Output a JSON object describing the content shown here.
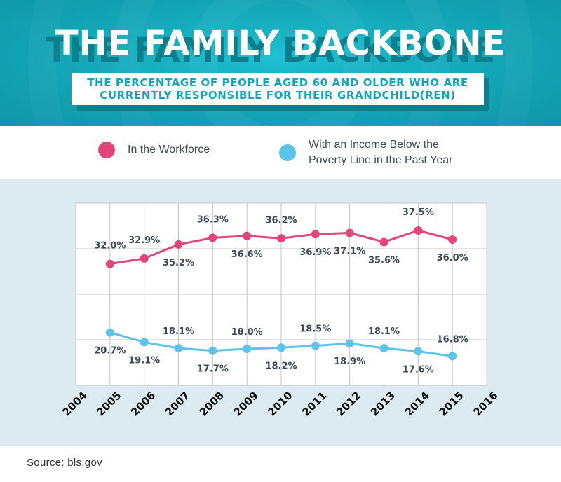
{
  "header": {
    "title": "THE FAMILY BACKBONE",
    "subtitle": "THE PERCENTAGE OF PEOPLE AGED 60 AND OLDER WHO ARE\nCURRENTLY RESPONSIBLE FOR THEIR GRANDCHILD(REN)"
  },
  "legend": [
    {
      "label": "In the Workforce",
      "color": "#e0467a"
    },
    {
      "label": "With an Income Below the\nPoverty Line in the Past Year",
      "color": "#5ec3ea"
    }
  ],
  "chart_data": {
    "type": "line",
    "x_ticks": [
      "2004",
      "2005",
      "2006",
      "2007",
      "2008",
      "2009",
      "2010",
      "2011",
      "2012",
      "2013",
      "2014",
      "2015",
      "2016"
    ],
    "x": [
      2005,
      2006,
      2007,
      2008,
      2009,
      2010,
      2011,
      2012,
      2013,
      2014,
      2015
    ],
    "xlim": [
      2004,
      2016
    ],
    "ylim": [
      12,
      42
    ],
    "grid": true,
    "series": [
      {
        "name": "In the Workforce",
        "color": "#e0467a",
        "values": [
          32.0,
          32.9,
          35.2,
          36.3,
          36.6,
          36.2,
          36.9,
          37.1,
          35.6,
          37.5,
          36.0
        ],
        "labels": [
          "32.0%",
          "32.9%",
          "35.2%",
          "36.3%",
          "36.6%",
          "36.2%",
          "36.9%",
          "37.1%",
          "35.6%",
          "37.5%",
          "36.0%"
        ]
      },
      {
        "name": "With an Income Below the Poverty Line in the Past Year",
        "color": "#5ec3ea",
        "values": [
          20.7,
          19.1,
          18.1,
          17.7,
          18.0,
          18.2,
          18.5,
          18.9,
          18.1,
          17.6,
          16.8
        ],
        "labels": [
          "20.7%",
          "19.1%",
          "18.1%",
          "17.7%",
          "18.0%",
          "18.2%",
          "18.5%",
          "18.9%",
          "18.1%",
          "17.6%",
          "16.8%"
        ]
      }
    ]
  },
  "source": "Source: bls.gov"
}
